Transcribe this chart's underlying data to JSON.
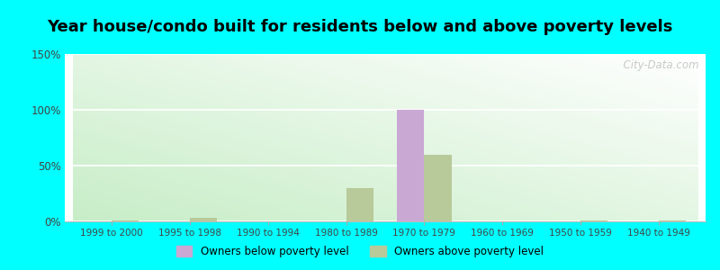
{
  "title": "Year house/condo built for residents below and above poverty levels",
  "categories": [
    "1999 to 2000",
    "1995 to 1998",
    "1990 to 1994",
    "1980 to 1989",
    "1970 to 1979",
    "1960 to 1969",
    "1950 to 1959",
    "1940 to 1949"
  ],
  "below_poverty": [
    0,
    0,
    0,
    0,
    100,
    0,
    0,
    0
  ],
  "above_poverty": [
    1,
    3,
    0,
    30,
    60,
    0,
    1,
    1
  ],
  "below_color": "#c9a8d4",
  "above_color": "#b8c99a",
  "ylim": [
    0,
    150
  ],
  "yticks": [
    0,
    50,
    100,
    150
  ],
  "ytick_labels": [
    "0%",
    "50%",
    "100%",
    "150%"
  ],
  "legend_below": "Owners below poverty level",
  "legend_above": "Owners above poverty level",
  "outer_bg": "#00ffff",
  "watermark": "  City-Data.com",
  "bar_width": 0.35,
  "title_fontsize": 13
}
